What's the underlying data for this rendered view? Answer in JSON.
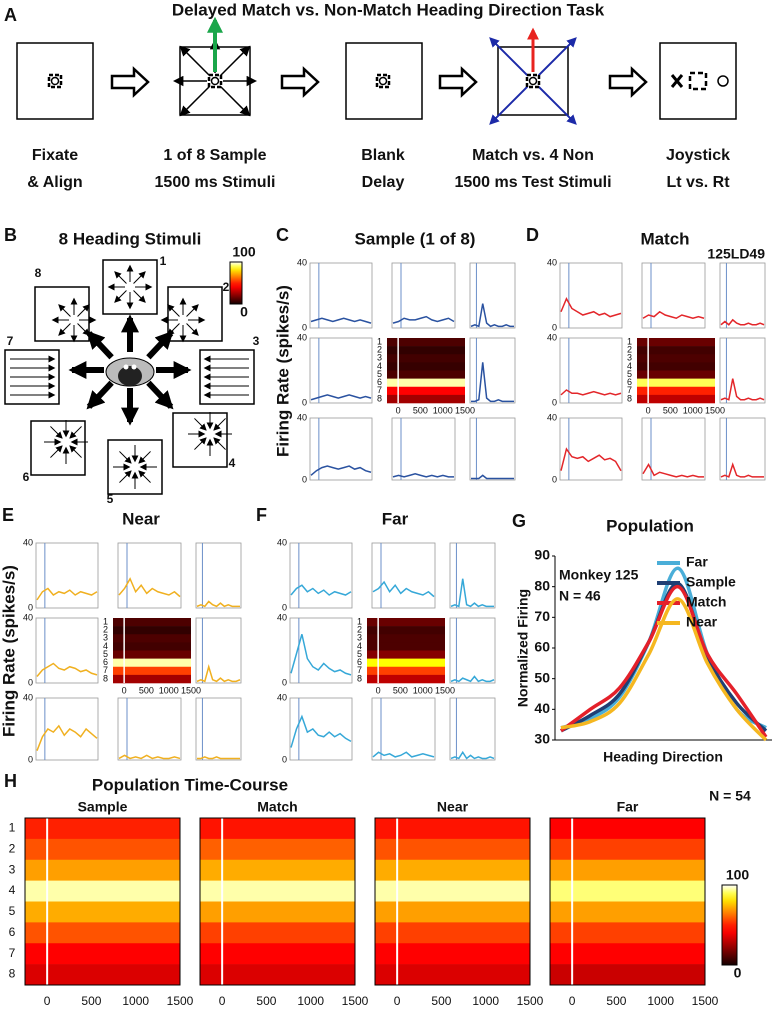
{
  "panel_a": {
    "label": "A",
    "title": "Delayed Match vs. Non-Match Heading Direction Task",
    "steps": [
      [
        "Fixate",
        "& Align"
      ],
      [
        "1 of 8 Sample",
        "1500 ms Stimuli"
      ],
      [
        "Blank",
        "Delay"
      ],
      [
        "Match vs. 4 Non",
        "1500 ms Test Stimuli"
      ],
      [
        "Joystick",
        "Lt vs. Rt"
      ]
    ]
  },
  "panel_b": {
    "label": "B",
    "title": "8 Heading Stimuli",
    "headings": [
      1,
      2,
      3,
      4,
      5,
      6,
      7,
      8
    ],
    "colorbar_ticks": [
      0,
      100
    ]
  },
  "rows": [
    1,
    2,
    3,
    4,
    5,
    6,
    7,
    8
  ],
  "time": {
    "xlim": [
      -250,
      1500
    ],
    "xticks": [
      0,
      500,
      1000,
      1500
    ]
  },
  "rate": {
    "ylim": [
      0,
      40
    ],
    "yticks": [
      0,
      40
    ]
  },
  "neurons": [
    {
      "label": "C",
      "title": "Sample (1 of 8)",
      "ylabel": "Firing Rate (spikes/s)",
      "color": "#2a52a0",
      "heatmap": [
        10,
        5,
        8,
        6,
        10,
        95,
        45,
        25
      ],
      "plots": [
        [
          4,
          5,
          6,
          5,
          4,
          5,
          6,
          5,
          4,
          5,
          4,
          3
        ],
        [
          3,
          4,
          6,
          5,
          5,
          6,
          7,
          5,
          4,
          5,
          6,
          4
        ],
        [
          1,
          2,
          1,
          15,
          3,
          1,
          2,
          1,
          1,
          2,
          1,
          1
        ],
        [
          2,
          3,
          4,
          5,
          4,
          3,
          4,
          5,
          4,
          3,
          4,
          3
        ],
        [
          1,
          1,
          2,
          25,
          3,
          1,
          1,
          2,
          1,
          1,
          1,
          1
        ],
        [
          3,
          6,
          8,
          9,
          8,
          7,
          8,
          9,
          7,
          8,
          6,
          5
        ],
        [
          2,
          3,
          2,
          3,
          4,
          3,
          2,
          3,
          2,
          3,
          2,
          2
        ],
        [
          1,
          1,
          1,
          3,
          1,
          1,
          1,
          1,
          1,
          1,
          1,
          1
        ]
      ]
    },
    {
      "label": "D",
      "title": "Match",
      "note": "125LD49",
      "color": "#e3262a",
      "heatmap": [
        15,
        8,
        10,
        8,
        15,
        90,
        50,
        30
      ],
      "plots": [
        [
          10,
          18,
          12,
          10,
          8,
          9,
          10,
          8,
          9,
          7,
          8,
          9
        ],
        [
          6,
          8,
          7,
          10,
          8,
          7,
          6,
          8,
          7,
          6,
          7,
          6
        ],
        [
          2,
          4,
          2,
          5,
          3,
          2,
          2,
          3,
          2,
          2,
          3,
          2
        ],
        [
          5,
          8,
          6,
          6,
          5,
          6,
          7,
          6,
          5,
          6,
          5,
          6
        ],
        [
          2,
          3,
          2,
          15,
          4,
          2,
          2,
          3,
          2,
          2,
          3,
          2
        ],
        [
          6,
          20,
          15,
          14,
          15,
          12,
          14,
          16,
          13,
          14,
          12,
          6
        ],
        [
          4,
          10,
          3,
          5,
          4,
          3,
          2,
          3,
          2,
          3,
          2,
          2
        ],
        [
          2,
          3,
          2,
          10,
          3,
          2,
          2,
          3,
          2,
          2,
          2,
          2
        ]
      ]
    },
    {
      "label": "E",
      "title": "Near",
      "ylabel": "Firing Rate (spikes/s)",
      "color": "#f0b020",
      "heatmap": [
        10,
        5,
        10,
        8,
        15,
        95,
        55,
        25
      ],
      "plots": [
        [
          5,
          10,
          12,
          8,
          10,
          9,
          11,
          8,
          10,
          9,
          8,
          10
        ],
        [
          8,
          12,
          18,
          10,
          14,
          9,
          12,
          10,
          9,
          8,
          10,
          7
        ],
        [
          1,
          2,
          1,
          4,
          2,
          1,
          3,
          1,
          2,
          1,
          1,
          1
        ],
        [
          4,
          8,
          10,
          12,
          9,
          8,
          10,
          9,
          7,
          8,
          6,
          5
        ],
        [
          1,
          2,
          1,
          10,
          2,
          1,
          3,
          1,
          2,
          1,
          1,
          2
        ],
        [
          6,
          15,
          20,
          18,
          22,
          16,
          20,
          18,
          15,
          20,
          17,
          14
        ],
        [
          1,
          3,
          1,
          2,
          1,
          3,
          1,
          2,
          1,
          1,
          2,
          1
        ],
        [
          1,
          1,
          2,
          1,
          1,
          2,
          1,
          1,
          1,
          1,
          1,
          1
        ]
      ]
    },
    {
      "label": "F",
      "title": "Far",
      "color": "#36a8d8",
      "heatmap": [
        15,
        8,
        10,
        10,
        20,
        85,
        55,
        30
      ],
      "plots": [
        [
          8,
          12,
          14,
          10,
          12,
          9,
          11,
          8,
          10,
          9,
          8,
          10
        ],
        [
          10,
          12,
          16,
          10,
          14,
          9,
          12,
          10,
          9,
          8,
          10,
          7
        ],
        [
          1,
          2,
          1,
          18,
          2,
          1,
          3,
          1,
          2,
          1,
          1,
          1
        ],
        [
          6,
          18,
          30,
          15,
          10,
          8,
          12,
          9,
          7,
          8,
          6,
          5
        ],
        [
          1,
          2,
          1,
          3,
          2,
          1,
          4,
          1,
          2,
          1,
          1,
          2
        ],
        [
          8,
          20,
          28,
          18,
          20,
          16,
          15,
          18,
          15,
          17,
          14,
          12
        ],
        [
          2,
          5,
          3,
          4,
          2,
          3,
          5,
          2,
          3,
          4,
          3,
          2
        ],
        [
          1,
          2,
          1,
          5,
          1,
          3,
          1,
          2,
          1,
          1,
          2,
          1
        ]
      ]
    }
  ],
  "chart_data": {
    "type": "line",
    "label": "G",
    "title": "Population",
    "ylabel": "Normalized Firing",
    "xlabel": "Heading Direction",
    "annotations": [
      "Monkey 125",
      "N = 46"
    ],
    "ylim": [
      30,
      90
    ],
    "yticks": [
      30,
      40,
      50,
      60,
      70,
      80,
      90
    ],
    "legend": "top-right",
    "series": [
      {
        "name": "Far",
        "color": "#4aaed8",
        "values": [
          34,
          37,
          44,
          62,
          86,
          58,
          40,
          34
        ]
      },
      {
        "name": "Sample",
        "color": "#1f3f74",
        "values": [
          33,
          38,
          45,
          62,
          81,
          57,
          42,
          33
        ]
      },
      {
        "name": "Match",
        "color": "#e4202a",
        "values": [
          33,
          40,
          47,
          62,
          80,
          58,
          45,
          31
        ]
      },
      {
        "name": "Near",
        "color": "#f5b720",
        "values": [
          34,
          36,
          42,
          58,
          76,
          55,
          40,
          30
        ]
      }
    ]
  },
  "panel_h": {
    "label": "H",
    "title": "Population Time-Course",
    "note": "N = 54",
    "colorbar_ticks": [
      0,
      100
    ],
    "heatmaps": [
      {
        "title": "Sample",
        "rows": [
          50,
          58,
          70,
          95,
          72,
          58,
          42,
          35
        ]
      },
      {
        "title": "Match",
        "rows": [
          48,
          60,
          72,
          95,
          70,
          55,
          45,
          35
        ]
      },
      {
        "title": "Near",
        "rows": [
          48,
          58,
          72,
          95,
          70,
          55,
          45,
          35
        ]
      },
      {
        "title": "Far",
        "rows": [
          45,
          55,
          70,
          92,
          70,
          55,
          42,
          32
        ]
      }
    ]
  }
}
